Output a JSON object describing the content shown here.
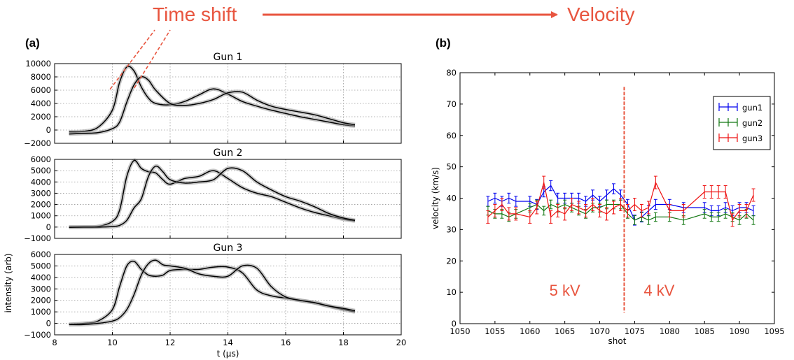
{
  "header": {
    "left_text": "Time shift",
    "right_text": "Velocity",
    "color": "#e8553f"
  },
  "colors": {
    "accent": "#e8553f",
    "trace": "#000000",
    "band": "#9a9a9a"
  },
  "chart_data": [
    {
      "type": "line",
      "panel_label": "(a)",
      "title": "Gun 1",
      "xlabel": "",
      "ylabel": "",
      "xlim": [
        8,
        20
      ],
      "ylim": [
        -2000,
        10000
      ],
      "xticks": [
        "8",
        "10",
        "12",
        "14",
        "16",
        "18",
        "20"
      ],
      "yticks": [
        "10000",
        "8000",
        "6000",
        "4000",
        "2000",
        "0",
        "−2000"
      ],
      "grid": true,
      "x": [
        8.5,
        9.0,
        9.5,
        10.0,
        10.25,
        10.5,
        10.75,
        11.0,
        11.25,
        11.5,
        12.0,
        12.5,
        13.0,
        13.5,
        14.0,
        14.5,
        15.0,
        15.5,
        16.0,
        16.5,
        17.0,
        17.5,
        18.0,
        18.4
      ],
      "series": [
        {
          "values": [
            -300,
            -200,
            400,
            3000,
            7200,
            9500,
            8900,
            6500,
            4800,
            4000,
            3800,
            4300,
            5300,
            6200,
            5400,
            4300,
            3600,
            3000,
            2500,
            2000,
            1600,
            1200,
            800,
            600
          ]
        },
        {
          "values": [
            -600,
            -500,
            -400,
            200,
            1200,
            4200,
            6800,
            8000,
            7500,
            6000,
            4000,
            3700,
            4000,
            4600,
            5600,
            5700,
            4500,
            3600,
            3100,
            2700,
            2300,
            1700,
            1100,
            800
          ]
        }
      ],
      "dashed_guides": true
    },
    {
      "type": "line",
      "title": "Gun 2",
      "xlabel": "",
      "ylabel": "",
      "xlim": [
        8,
        20
      ],
      "ylim": [
        -1000,
        6000
      ],
      "xticks": [
        "8",
        "10",
        "12",
        "14",
        "16",
        "18",
        "20"
      ],
      "yticks": [
        "6000",
        "5000",
        "4000",
        "3000",
        "2000",
        "1000",
        "0",
        "−1000"
      ],
      "grid": true,
      "x": [
        8.5,
        9.0,
        9.5,
        10.0,
        10.25,
        10.5,
        10.75,
        11.0,
        11.25,
        11.5,
        11.75,
        12.0,
        12.5,
        13.0,
        13.5,
        14.0,
        14.5,
        15.0,
        15.5,
        16.0,
        16.5,
        17.0,
        17.5,
        18.0,
        18.4
      ],
      "series": [
        {
          "values": [
            0,
            0,
            50,
            500,
            1500,
            4500,
            5900,
            5200,
            4900,
            4800,
            4200,
            3800,
            4300,
            4500,
            5000,
            4300,
            3500,
            3000,
            2700,
            2200,
            1700,
            1300,
            1000,
            700,
            550
          ]
        },
        {
          "values": [
            -20,
            0,
            0,
            50,
            150,
            600,
            1700,
            2500,
            4500,
            5400,
            4900,
            4200,
            3900,
            4000,
            4200,
            5200,
            5000,
            4000,
            3300,
            2700,
            2300,
            1800,
            1200,
            800,
            600
          ]
        }
      ]
    },
    {
      "type": "line",
      "title": "Gun 3",
      "xlabel": "t (μs)",
      "ylabel": "intensity (arb)",
      "xlim": [
        8,
        20
      ],
      "ylim": [
        -1000,
        6000
      ],
      "xticks": [
        "8",
        "10",
        "12",
        "14",
        "16",
        "18",
        "20"
      ],
      "yticks": [
        "6000",
        "5000",
        "4000",
        "3000",
        "2000",
        "1000",
        "0",
        "−1000"
      ],
      "grid": true,
      "x": [
        8.5,
        9.0,
        9.5,
        10.0,
        10.25,
        10.5,
        10.75,
        11.0,
        11.25,
        11.5,
        11.75,
        12.0,
        12.5,
        13.0,
        13.5,
        14.0,
        14.5,
        15.0,
        15.5,
        16.0,
        16.5,
        17.0,
        17.5,
        18.0,
        18.4
      ],
      "series": [
        {
          "values": [
            -100,
            0,
            200,
            1200,
            3200,
            5000,
            5400,
            4700,
            4200,
            4100,
            4200,
            4600,
            4700,
            4700,
            4900,
            4900,
            4400,
            2900,
            2400,
            2200,
            2000,
            1800,
            1500,
            1200,
            1000
          ]
        },
        {
          "values": [
            -100,
            -100,
            0,
            200,
            500,
            1200,
            2500,
            4200,
            5200,
            5500,
            5100,
            5000,
            4800,
            4300,
            4100,
            4100,
            5000,
            4800,
            3200,
            2300,
            2000,
            1800,
            1500,
            1300,
            1100
          ]
        }
      ]
    },
    {
      "type": "line",
      "panel_label": "(b)",
      "title": "",
      "xlabel": "shot",
      "ylabel": "velocity (km/s)",
      "xlim": [
        1050,
        1095
      ],
      "ylim": [
        0,
        80
      ],
      "xticks": [
        "1050",
        "1055",
        "1060",
        "1065",
        "1070",
        "1075",
        "1080",
        "1085",
        "1090",
        "1095"
      ],
      "yticks": [
        "80",
        "70",
        "60",
        "50",
        "40",
        "30",
        "20",
        "10",
        "0"
      ],
      "grid": false,
      "legend_position": "top-right",
      "x": [
        1054,
        1055,
        1056,
        1057,
        1058,
        1060,
        1061,
        1062,
        1063,
        1064,
        1065,
        1066,
        1067,
        1068,
        1069,
        1070,
        1071,
        1072,
        1073,
        1074,
        1075,
        1076,
        1077,
        1078,
        1080,
        1082,
        1085,
        1086,
        1087,
        1088,
        1089,
        1090,
        1091,
        1092
      ],
      "series": [
        {
          "name": "gun1",
          "color": "#0000ee",
          "error": 1.6,
          "values": [
            39,
            40,
            39,
            40,
            39,
            39,
            38,
            42,
            44,
            40,
            40,
            40,
            40,
            39,
            41,
            39,
            41,
            43,
            41,
            38,
            33,
            34,
            36,
            38,
            38,
            37,
            37,
            36,
            36,
            37,
            36,
            37,
            37,
            36
          ]
        },
        {
          "name": "gun2",
          "color": "#117711",
          "error": 1.4,
          "values": [
            36,
            35,
            35,
            34,
            35,
            37,
            38,
            36,
            38,
            37,
            38,
            37,
            36,
            35,
            37,
            37,
            38,
            38,
            38,
            35,
            33,
            34,
            33,
            34,
            34,
            33,
            35,
            34,
            34,
            35,
            34,
            33,
            35,
            33
          ]
        },
        {
          "name": "gun3",
          "color": "#ee1111",
          "error": 2.0,
          "values": [
            34,
            36,
            38,
            35,
            35,
            34,
            37,
            45,
            34,
            36,
            35,
            38,
            37,
            36,
            38,
            36,
            35,
            37,
            38,
            36,
            38,
            36,
            37,
            45,
            36,
            36,
            42,
            42,
            42,
            42,
            33,
            36,
            36,
            41
          ]
        }
      ],
      "divider_x": 1073.5,
      "annotations": [
        "5 kV",
        "4 kV"
      ]
    }
  ]
}
